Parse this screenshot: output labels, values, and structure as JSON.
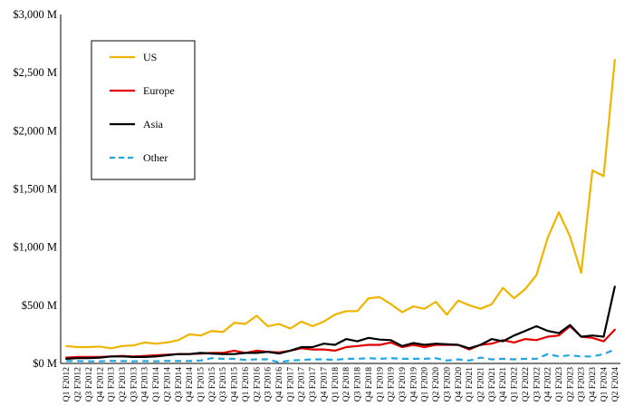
{
  "chart_data": {
    "type": "line",
    "title": "",
    "xlabel": "",
    "ylabel": "",
    "ylim": [
      0,
      3000
    ],
    "yticks": [
      0,
      500,
      1000,
      1500,
      2000,
      2500,
      3000
    ],
    "ytick_labels": [
      "$0 M",
      "$500 M",
      "$1,000 M",
      "$1,500 M",
      "$2,000 M",
      "$2,500 M",
      "$3,000 M"
    ],
    "grid": false,
    "legend_position": "top-left",
    "categories": [
      "Q1 F2012",
      "Q2 F2012",
      "Q3 F2012",
      "Q4 F2012",
      "Q1 F2013",
      "Q2 F2013",
      "Q3 F2013",
      "Q4 F2013",
      "Q1 F2014",
      "Q2 F2014",
      "Q3 F2014",
      "Q4 F2014",
      "Q1 F2015",
      "Q2 F2015",
      "Q3 F2015",
      "Q4 F2015",
      "Q1 F2016",
      "Q2 F2016",
      "Q3 F2016",
      "Q4 F2016",
      "Q1 F2017",
      "Q2 F2017",
      "Q3 F2017",
      "Q4 F2017",
      "Q1 F2018",
      "Q2 F2018",
      "Q3 F2018",
      "Q4 F2018",
      "Q1 F2019",
      "Q2 F2019",
      "Q3 F2019",
      "Q4 F2019",
      "Q1 F2020",
      "Q2 F2020",
      "Q3 F2020",
      "Q4 F2020",
      "Q1 F2021",
      "Q2 F2021",
      "Q3 F2021",
      "Q4 F2021",
      "Q1 F2022",
      "Q2 F2022",
      "Q3 F2022",
      "Q4 F2022",
      "Q1 F2023",
      "Q2 F2023",
      "Q3 F2023",
      "Q4 F2023",
      "Q1 F2024",
      "Q2 F2024"
    ],
    "series": [
      {
        "name": "US",
        "color": "#F0B400",
        "dash": "solid",
        "values": [
          150,
          140,
          140,
          145,
          130,
          150,
          155,
          180,
          170,
          180,
          200,
          250,
          240,
          280,
          270,
          350,
          340,
          410,
          320,
          340,
          300,
          360,
          320,
          360,
          420,
          450,
          450,
          560,
          570,
          510,
          440,
          490,
          470,
          530,
          420,
          540,
          500,
          470,
          510,
          650,
          560,
          640,
          760,
          1080,
          1300,
          1090,
          780,
          1660,
          1610,
          2610
        ]
      },
      {
        "name": "Europe",
        "color": "#E00000",
        "dash": "solid",
        "values": [
          50,
          55,
          55,
          55,
          60,
          65,
          60,
          65,
          70,
          75,
          80,
          80,
          85,
          90,
          90,
          110,
          90,
          110,
          100,
          95,
          110,
          130,
          120,
          120,
          110,
          140,
          150,
          160,
          160,
          180,
          140,
          160,
          140,
          160,
          160,
          160,
          120,
          160,
          170,
          200,
          180,
          210,
          200,
          230,
          240,
          320,
          230,
          220,
          190,
          290
        ]
      },
      {
        "name": "Asia",
        "color": "#000000",
        "dash": "solid",
        "values": [
          40,
          45,
          45,
          50,
          60,
          60,
          55,
          55,
          60,
          70,
          80,
          80,
          90,
          85,
          80,
          80,
          90,
          90,
          100,
          85,
          110,
          140,
          140,
          170,
          160,
          210,
          190,
          220,
          205,
          200,
          150,
          175,
          160,
          170,
          165,
          160,
          130,
          160,
          210,
          190,
          240,
          280,
          320,
          280,
          260,
          330,
          230,
          240,
          230,
          660
        ]
      },
      {
        "name": "Other",
        "color": "#1EA7E0",
        "dash": "dashed",
        "values": [
          20,
          20,
          18,
          18,
          22,
          20,
          18,
          20,
          18,
          22,
          20,
          20,
          25,
          45,
          40,
          40,
          30,
          35,
          35,
          10,
          25,
          30,
          35,
          35,
          30,
          40,
          40,
          45,
          40,
          45,
          40,
          40,
          40,
          45,
          25,
          35,
          25,
          50,
          35,
          40,
          35,
          40,
          40,
          80,
          60,
          70,
          60,
          60,
          80,
          120
        ]
      }
    ]
  }
}
